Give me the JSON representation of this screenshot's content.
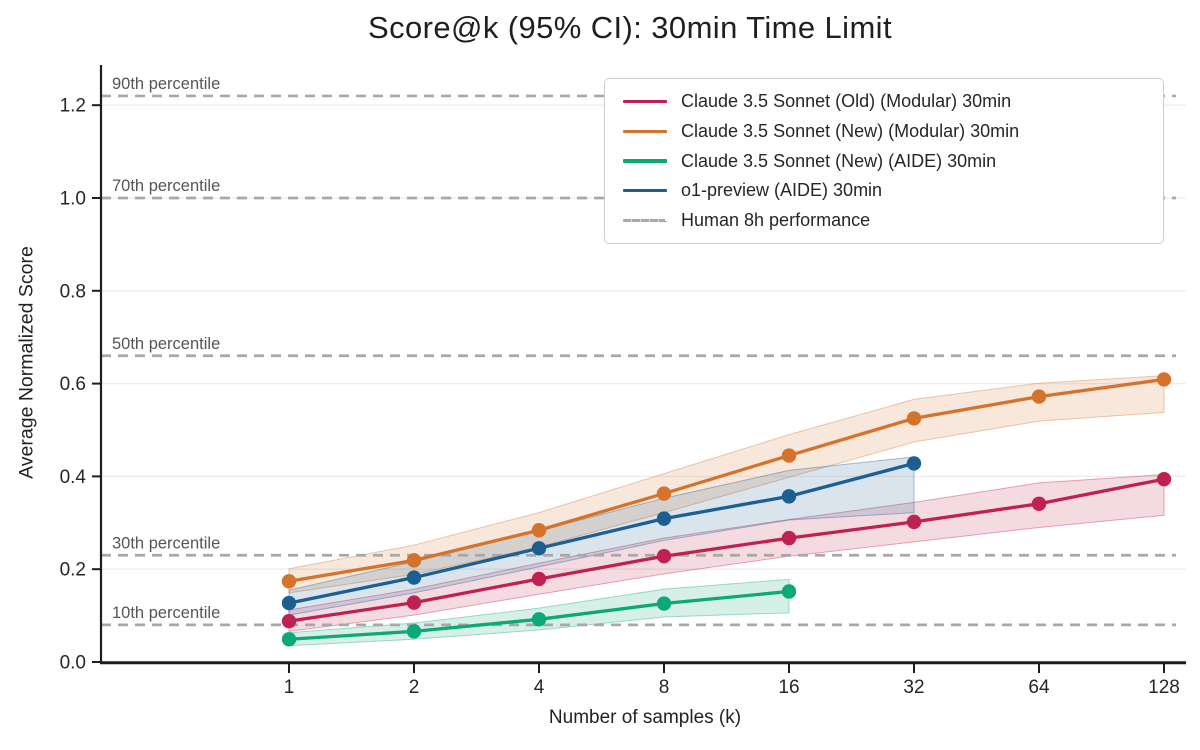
{
  "title": "Score@k (95% CI): 30min Time Limit",
  "axes": {
    "x_label": "Number of samples (k)",
    "y_label": "Average Normalized Score",
    "y_ticks": [
      "0.0",
      "0.2",
      "0.4",
      "0.6",
      "0.8",
      "1.0",
      "1.2"
    ]
  },
  "legend": {
    "items": [
      {
        "label": "Claude 3.5 Sonnet (Old) (Modular) 30min",
        "color": "#bf2150",
        "dash": false
      },
      {
        "label": "Claude 3.5 Sonnet (New) (Modular) 30min",
        "color": "#d4732c",
        "dash": false
      },
      {
        "label": "Claude 3.5 Sonnet (New) (AIDE) 30min",
        "color": "#0da878",
        "dash": false
      },
      {
        "label": "o1-preview (AIDE) 30min",
        "color": "#1d5f90",
        "dash": false
      },
      {
        "label": "Human 8h performance",
        "color": "#a8a8a8",
        "dash": true
      }
    ]
  },
  "chart_data": {
    "type": "line",
    "title": "Score@k (95% CI): 30min Time Limit",
    "xlabel": "Number of samples (k)",
    "ylabel": "Average Normalized Score",
    "x_scale": "log2",
    "x_ticks": [
      1,
      2,
      4,
      8,
      16,
      32,
      64,
      128
    ],
    "xlim_log2": [
      -1.5,
      7.18
    ],
    "ylim": [
      0,
      1.287
    ],
    "grid": true,
    "grid_values": [
      0.2,
      0.4,
      0.6,
      0.8,
      1.0,
      1.2
    ],
    "legend_position": "upper right",
    "series": [
      {
        "name": "Claude 3.5 Sonnet (Old) (Modular) 30min",
        "color": "#bf2150",
        "x": [
          1,
          2,
          4,
          8,
          16,
          32,
          64,
          128
        ],
        "y": [
          0.088,
          0.128,
          0.179,
          0.228,
          0.267,
          0.302,
          0.341,
          0.394
        ],
        "ci_lower": [
          0.066,
          0.101,
          0.146,
          0.19,
          0.228,
          0.259,
          0.29,
          0.316
        ],
        "ci_upper": [
          0.112,
          0.157,
          0.213,
          0.267,
          0.307,
          0.344,
          0.386,
          0.404
        ]
      },
      {
        "name": "Claude 3.5 Sonnet (New) (Modular) 30min",
        "color": "#d4732c",
        "x": [
          1,
          2,
          4,
          8,
          16,
          32,
          64,
          128
        ],
        "y": [
          0.174,
          0.219,
          0.284,
          0.363,
          0.445,
          0.525,
          0.572,
          0.609
        ],
        "ci_lower": [
          0.149,
          0.189,
          0.248,
          0.322,
          0.398,
          0.474,
          0.519,
          0.538
        ],
        "ci_upper": [
          0.201,
          0.252,
          0.322,
          0.406,
          0.49,
          0.566,
          0.601,
          0.617
        ]
      },
      {
        "name": "Claude 3.5 Sonnet (New) (AIDE) 30min",
        "color": "#0da878",
        "x": [
          1,
          2,
          4,
          8,
          16
        ],
        "y": [
          0.049,
          0.066,
          0.092,
          0.126,
          0.152
        ],
        "ci_lower": [
          0.035,
          0.049,
          0.069,
          0.097,
          0.106
        ],
        "ci_upper": [
          0.063,
          0.084,
          0.116,
          0.157,
          0.178
        ]
      },
      {
        "name": "o1-preview (AIDE) 30min",
        "color": "#1d5f90",
        "x": [
          1,
          2,
          4,
          8,
          16,
          32
        ],
        "y": [
          0.127,
          0.182,
          0.245,
          0.309,
          0.357,
          0.428
        ],
        "ci_lower": [
          0.101,
          0.149,
          0.205,
          0.262,
          0.306,
          0.322
        ],
        "ci_upper": [
          0.155,
          0.216,
          0.283,
          0.353,
          0.413,
          0.442
        ]
      }
    ],
    "reference_lines": [
      {
        "label": "90th percentile",
        "value": 1.22
      },
      {
        "label": "70th percentile",
        "value": 1.0
      },
      {
        "label": "50th percentile",
        "value": 0.66
      },
      {
        "label": "30th percentile",
        "value": 0.23
      },
      {
        "label": "10th percentile",
        "value": 0.08
      }
    ],
    "reference_line_legend_label": "Human 8h performance",
    "colors": {
      "reference_line": "#a8a8a8",
      "reference_label_text": "#565656",
      "grid_line": "#ededed",
      "axis_spine": "#1d1d1d",
      "tick_label_text": "#262626",
      "band_fill_opacity": 0.17
    }
  }
}
